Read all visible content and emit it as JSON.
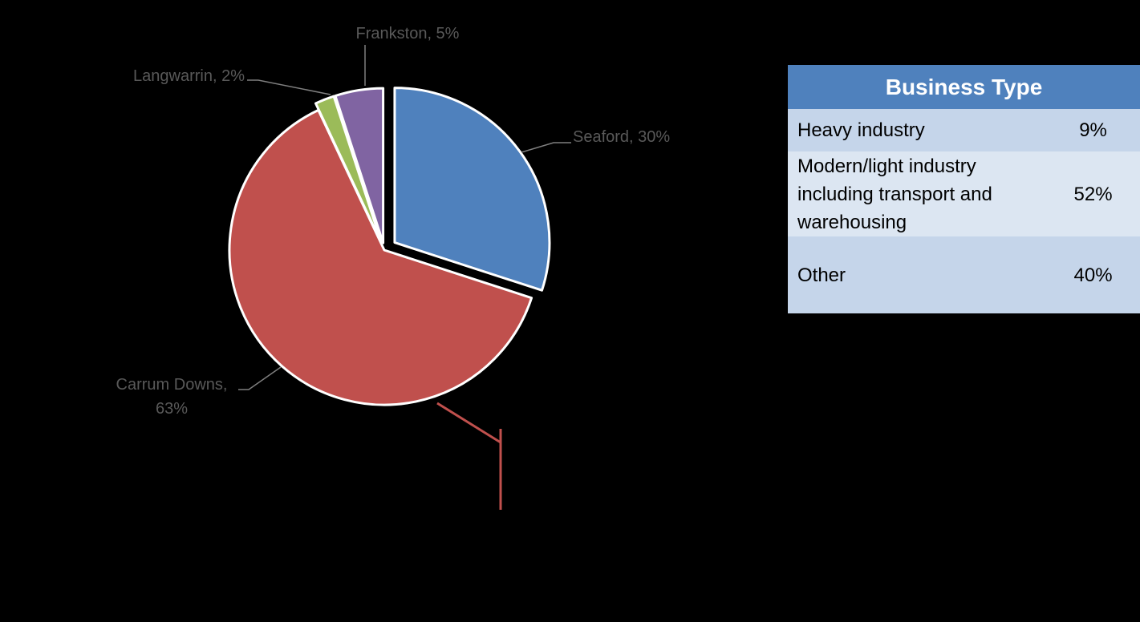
{
  "chart_data": {
    "type": "pie",
    "categories": [
      "Seaford",
      "Carrum Downs",
      "Langwarrin",
      "Frankston"
    ],
    "values": [
      30,
      63,
      2,
      5
    ],
    "data_labels": [
      "Seaford, 30%",
      "Carrum Downs, 63%",
      "Langwarrin, 2%",
      "Frankston, 5%"
    ],
    "colors": [
      "#4f81bd",
      "#c0504d",
      "#9bbb59",
      "#8064a2"
    ]
  },
  "table": {
    "header": "Business Type",
    "rows": [
      [
        "Heavy industry",
        "9%"
      ],
      [
        "Modern/light industry including transport and warehousing",
        "52%"
      ],
      [
        "Other",
        "40%"
      ]
    ]
  }
}
